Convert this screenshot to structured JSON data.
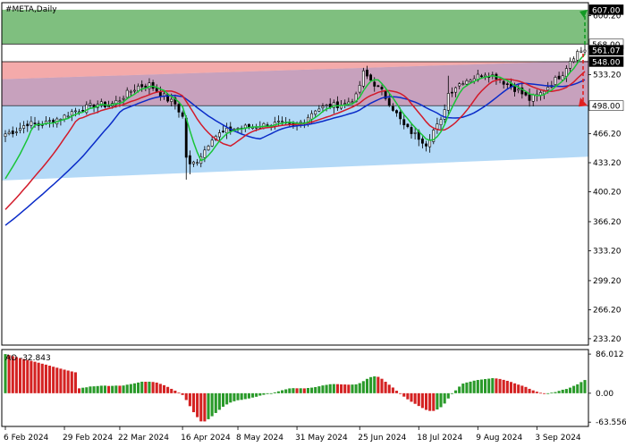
{
  "header": {
    "title": "#META,Daily",
    "ao_label": "AO -32.843"
  },
  "colors": {
    "green_zone": "#7fbf7f",
    "red_zone": "#f4aaaa",
    "blue_zone": "#b3d9f7",
    "overlap_zone": "#c7a1bd",
    "sma_green": "#19c437",
    "sma_red": "#d21a2a",
    "sma_blue": "#0a2bc8",
    "ao_up": "#2a9a2a",
    "ao_down": "#d42222",
    "target_up": "#139a24",
    "target_down": "#e02020",
    "grid": "#000000"
  },
  "chart_data": [
    {
      "type": "candlestick",
      "title": "#META,Daily",
      "y_ticks": [
        "600.20",
        "568.00",
        "561.07",
        "548.00",
        "533.20",
        "498.00",
        "466.20",
        "433.20",
        "400.20",
        "366.20",
        "333.20",
        "299.20",
        "266.20",
        "233.20"
      ],
      "y_tick_values": [
        600.2,
        568.0,
        561.07,
        548.0,
        533.2,
        498.0,
        466.2,
        433.2,
        400.2,
        366.2,
        333.2,
        299.2,
        266.2,
        233.2
      ],
      "price_labels": {
        "upper_target": "607.00",
        "level_568": "568.00",
        "current": "561.07",
        "level_548": "548.00",
        "level_498": "498.00"
      },
      "ylim": [
        226,
        615
      ],
      "x_ticks": [
        "6 Feb 2024",
        "29 Feb 2024",
        "22 Mar 2024",
        "16 Apr 2024",
        "8 May 2024",
        "31 May 2024",
        "25 Jun 2024",
        "18 Jul 2024",
        "9 Aug 2024",
        "3 Sep 2024"
      ],
      "x_tick_index": [
        0,
        16,
        31,
        48,
        63,
        79,
        96,
        112,
        128,
        144
      ],
      "bars_total": 158,
      "zones": {
        "green": [
          568,
          607
        ],
        "red_channel": {
          "top_start": 528,
          "top_end": 549,
          "bottom": 498
        },
        "blue_channel": {
          "top": 498,
          "bottom_start": 413,
          "bottom_end": 440
        }
      },
      "anchors": [
        [
          0,
          466
        ],
        [
          3,
          470
        ],
        [
          6,
          478
        ],
        [
          9,
          476
        ],
        [
          12,
          480
        ],
        [
          16,
          486
        ],
        [
          18,
          491
        ],
        [
          22,
          496
        ],
        [
          25,
          500
        ],
        [
          28,
          498
        ],
        [
          31,
          505
        ],
        [
          33,
          512
        ],
        [
          36,
          520
        ],
        [
          39,
          522
        ],
        [
          42,
          512
        ],
        [
          44,
          505
        ],
        [
          46,
          500
        ],
        [
          48,
          485
        ],
        [
          49,
          440
        ],
        [
          50,
          430
        ],
        [
          52,
          436
        ],
        [
          54,
          448
        ],
        [
          56,
          462
        ],
        [
          59,
          468
        ],
        [
          62,
          472
        ],
        [
          66,
          474
        ],
        [
          70,
          476
        ],
        [
          74,
          478
        ],
        [
          78,
          474
        ],
        [
          81,
          482
        ],
        [
          84,
          494
        ],
        [
          88,
          498
        ],
        [
          92,
          500
        ],
        [
          95,
          508
        ],
        [
          97,
          535
        ],
        [
          99,
          527
        ],
        [
          102,
          514
        ],
        [
          105,
          495
        ],
        [
          108,
          475
        ],
        [
          110,
          468
        ],
        [
          112,
          462
        ],
        [
          114,
          455
        ],
        [
          116,
          470
        ],
        [
          118,
          480
        ],
        [
          120,
          512
        ],
        [
          122,
          520
        ],
        [
          124,
          526
        ],
        [
          127,
          530
        ],
        [
          130,
          535
        ],
        [
          133,
          531
        ],
        [
          136,
          522
        ],
        [
          139,
          515
        ],
        [
          142,
          505
        ],
        [
          145,
          512
        ],
        [
          148,
          524
        ],
        [
          151,
          535
        ],
        [
          153,
          550
        ],
        [
          155,
          559
        ],
        [
          157,
          562
        ]
      ],
      "sma_periods": {
        "green": 5,
        "red": 13,
        "blue": 21
      },
      "projection": {
        "up_target": 607,
        "down_target": 498
      }
    },
    {
      "type": "bar",
      "title": "AO -32.843",
      "y_ticks": [
        "86.012",
        "0.00",
        "-63.556"
      ],
      "y_tick_values": [
        86.012,
        0.0,
        -63.556
      ],
      "ylim": [
        -73,
        96
      ],
      "values_note": "derived from price series (SMA5 - SMA34 of median)"
    }
  ]
}
